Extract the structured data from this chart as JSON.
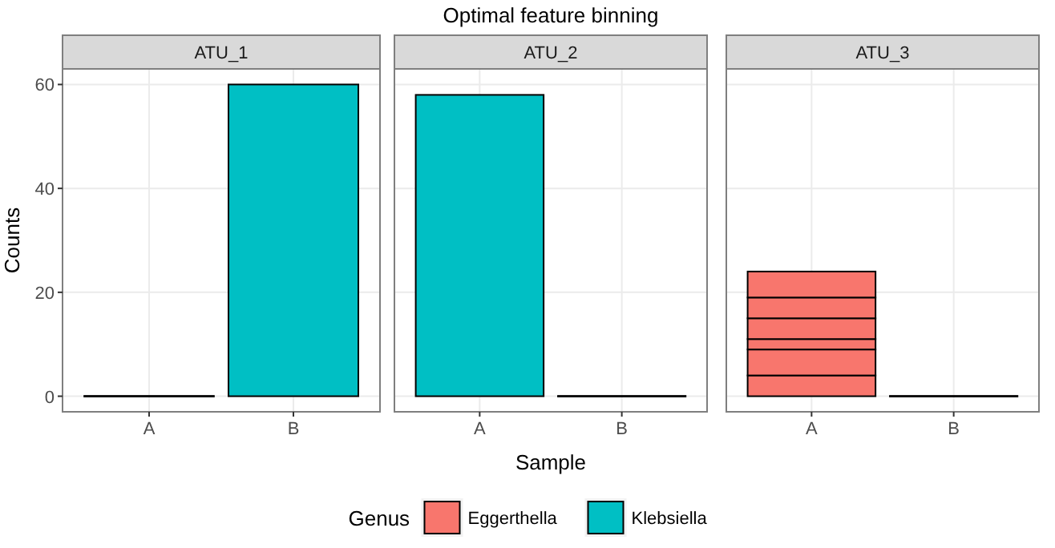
{
  "chart_data": [
    {
      "type": "bar",
      "title": "ATU_1",
      "ylabel": "Counts",
      "categories": [
        "A",
        "B"
      ],
      "stacked": true,
      "ylim": [
        -3,
        63
      ],
      "yticks": [
        0,
        20,
        40,
        60
      ],
      "grid": true,
      "series": [
        {
          "name": "Klebsiella",
          "color": "#00bfc4",
          "values": [
            0,
            60
          ]
        }
      ]
    },
    {
      "type": "bar",
      "title": "ATU_2",
      "xlabel": "Sample",
      "annotations": [
        "Optimal feature binning"
      ],
      "legend": "bottom",
      "legend_title": "Genus",
      "categories": [
        "A",
        "B"
      ],
      "stacked": true,
      "ylim": [
        -3,
        63
      ],
      "yticks": [
        0,
        20,
        40,
        60
      ],
      "grid": true,
      "tick_labels": "x",
      "series": [
        {
          "name": "Eggerthella",
          "color": "#f8766d",
          "values": [
            null,
            null
          ]
        },
        {
          "name": "Klebsiella",
          "color": "#00bfc4",
          "values": [
            58,
            0
          ]
        }
      ]
    },
    {
      "type": "bar",
      "title": "ATU_3",
      "categories": [
        "A",
        "B"
      ],
      "stacked": true,
      "ylim": [
        -3,
        63
      ],
      "yticks": [
        0,
        20,
        40,
        60
      ],
      "grid": true,
      "tick_labels": "x",
      "series": [
        {
          "color": "#f8766d",
          "values": [
            4,
            0
          ]
        },
        {
          "color": "#f8766d",
          "values": [
            5,
            null
          ]
        },
        {
          "color": "#f8766d",
          "values": [
            2,
            null
          ]
        },
        {
          "color": "#f8766d",
          "values": [
            4,
            null
          ]
        },
        {
          "color": "#f8766d",
          "values": [
            4,
            null
          ]
        },
        {
          "color": "#f8766d",
          "values": [
            5,
            null
          ]
        }
      ]
    }
  ]
}
